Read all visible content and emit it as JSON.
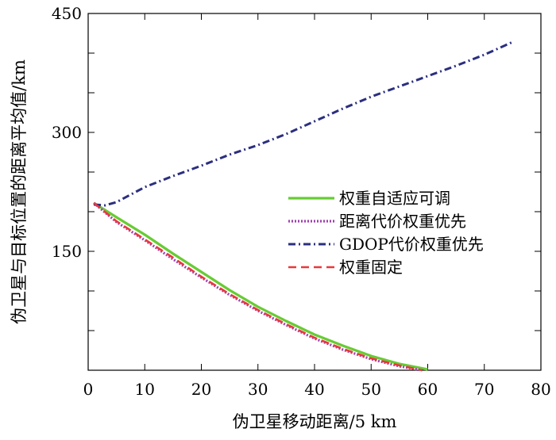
{
  "chart_data": {
    "type": "line",
    "title": "",
    "xlabel": "伪卫星移动距离/5 km",
    "ylabel": "伪卫星与目标位置的距离平均值/km",
    "xlim": [
      0,
      80
    ],
    "ylim": [
      0,
      450
    ],
    "xticks": [
      0,
      10,
      20,
      30,
      40,
      50,
      60,
      70,
      80
    ],
    "yticks": [
      150,
      300,
      450
    ],
    "grid": false,
    "legend_position": "center-right",
    "series": [
      {
        "name": "权重自适应可调",
        "color": "#66cc33",
        "style": "solid",
        "x": [
          1,
          5,
          10,
          15,
          20,
          25,
          30,
          35,
          40,
          45,
          50,
          55,
          60
        ],
        "y": [
          211,
          193,
          171,
          147,
          124,
          101,
          80,
          62,
          45,
          31,
          18,
          8,
          1
        ]
      },
      {
        "name": "距离代价权重优先",
        "color": "#a040b0",
        "style": "dotted",
        "x": [
          1,
          5,
          10,
          15,
          20,
          25,
          30,
          35,
          40,
          45,
          50,
          55,
          59
        ],
        "y": [
          211,
          187,
          164,
          140,
          117,
          95,
          75,
          57,
          40,
          26,
          14,
          5,
          0
        ]
      },
      {
        "name": "GDOP代价权重优先",
        "color": "#2b2f7f",
        "style": "dashdot",
        "x": [
          1,
          3,
          5,
          10,
          15,
          20,
          25,
          30,
          35,
          40,
          45,
          50,
          55,
          60,
          65,
          70,
          75
        ],
        "y": [
          209,
          208,
          212,
          231,
          245,
          258,
          272,
          284,
          298,
          314,
          330,
          345,
          358,
          371,
          384,
          398,
          414
        ]
      },
      {
        "name": "权重固定",
        "color": "#e8383d",
        "style": "dashed",
        "x": [
          1,
          5,
          10,
          15,
          20,
          25,
          30,
          35,
          40,
          45,
          50,
          55,
          59
        ],
        "y": [
          211,
          188,
          165,
          142,
          118,
          96,
          76,
          58,
          41,
          27,
          15,
          6,
          0
        ]
      }
    ]
  }
}
